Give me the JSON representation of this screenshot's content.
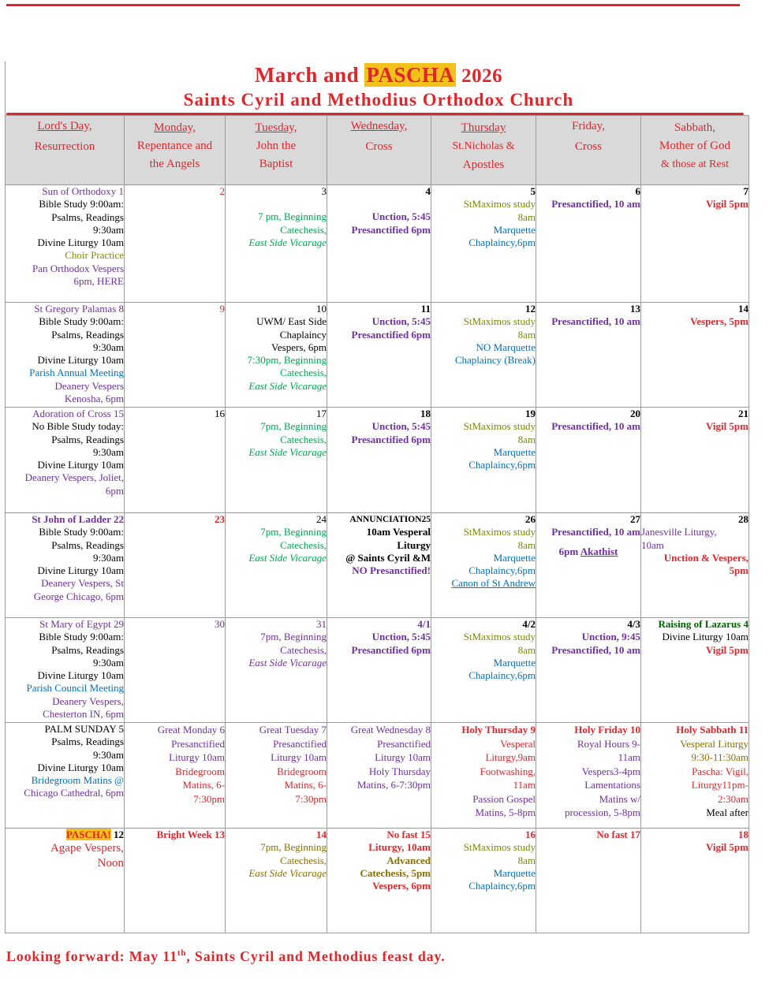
{
  "title": {
    "part1": "March and ",
    "highlight": "PASCHA",
    "year": " 2026"
  },
  "subtitle": "Saints Cyril and Methodius Orthodox Church",
  "headers": [
    {
      "line1": "Lord's Day,",
      "line2": "Resurrection"
    },
    {
      "line1": "Monday,",
      "line2": "Repentance and",
      "line3": "the Angels"
    },
    {
      "line1": "Tuesday,",
      "line2": "John the",
      "line3": "Baptist"
    },
    {
      "line1": "Wednesday,",
      "line2": "Cross"
    },
    {
      "line1": "Thursday",
      "line2": "St.Nicholas &",
      "line3": "Apostles"
    },
    {
      "line1": "Friday,",
      "line2": "Cross"
    },
    {
      "line1": "Sabbath,",
      "line2": "Mother of God",
      "line3": "& those at Rest"
    }
  ],
  "weeks": {
    "w1": {
      "sun": {
        "day": "Sun of Orthodoxy 1",
        "l1": "Bible Study 9:00am:",
        "l2": "Psalms, Readings",
        "l3": "9:30am",
        "l4": "Divine Liturgy 10am",
        "l5": "Choir Practice",
        "l6": "Pan Orthodox Vespers",
        "l7": "6pm, HERE"
      },
      "mon": {
        "day": "2"
      },
      "tue": {
        "day": "3",
        "l1": "7 pm, Beginning",
        "l2": "Catechesis,",
        "l3": "East Side Vicarage"
      },
      "wed": {
        "day": "4",
        "l1": "Unction, 5:45",
        "l2": "Presanctified 6pm"
      },
      "thu": {
        "day": "5",
        "l1": "StMaximos study",
        "l2": "8am",
        "l3": "Marquette",
        "l4": "Chaplaincy,6pm"
      },
      "fri": {
        "day": "6",
        "l1": "Presanctified, 10 am"
      },
      "sat": {
        "day": "7",
        "l1": "Vigil 5pm"
      }
    },
    "w2": {
      "sun": {
        "day": "St Gregory Palamas 8",
        "l1": "Bible Study 9:00am:",
        "l2": "Psalms, Readings",
        "l3": "9:30am",
        "l4": "Divine Liturgy 10am",
        "l5": "Parish Annual Meeting",
        "l6": "Deanery Vespers",
        "l7": "Kenosha, 6pm"
      },
      "mon": {
        "day": "9"
      },
      "tue": {
        "day": "10",
        "l1": "UWM/ East Side",
        "l2": "Chaplaincy",
        "l3": "Vespers, 6pm",
        "l4": "7:30pm, Beginning",
        "l5": "Catechesis,",
        "l6": "East Side Vicarage"
      },
      "wed": {
        "day": "11",
        "l1": "Unction, 5:45",
        "l2": "Presanctified 6pm"
      },
      "thu": {
        "day": "12",
        "l1": "StMaximos study",
        "l2": "8am",
        "l3": "NO Marquette",
        "l4": "Chaplaincy (Break)"
      },
      "fri": {
        "day": "13",
        "l1": "Presanctified, 10 am"
      },
      "sat": {
        "day": "14",
        "l1": "Vespers, 5pm"
      }
    },
    "w3": {
      "sun": {
        "day": "Adoration of Cross 15",
        "l1": "No Bible Study today:",
        "l2": "Psalms, Readings",
        "l3": "9:30am",
        "l4": "Divine Liturgy 10am",
        "l5": "Deanery Vespers, Joliet,",
        "l6": "6pm"
      },
      "mon": {
        "day": "16"
      },
      "tue": {
        "day": "17",
        "l1": "7pm, Beginning",
        "l2": "Catechesis,",
        "l3": "East Side Vicarage"
      },
      "wed": {
        "day": "18",
        "l1": "Unction, 5:45",
        "l2": "Presanctified 6pm"
      },
      "thu": {
        "day": "19",
        "l1": "StMaximos study",
        "l2": "8am",
        "l3": "Marquette",
        "l4": "Chaplaincy,6pm"
      },
      "fri": {
        "day": "20",
        "l1": "Presanctified, 10 am"
      },
      "sat": {
        "day": "21",
        "l1": "Vigil 5pm"
      }
    },
    "w4": {
      "sun": {
        "day": "St John of Ladder 22",
        "l1": "Bible Study 9:00am:",
        "l2": "Psalms, Readings",
        "l3": "9:30am",
        "l4": "Divine Liturgy 10am",
        "l5": "Deanery Vespers, St",
        "l6": "George Chicago, 6pm"
      },
      "mon": {
        "day": "23"
      },
      "tue": {
        "day": "24",
        "l1": "7pm, Beginning",
        "l2": "Catechesis,",
        "l3": "East Side Vicarage"
      },
      "wed": {
        "day": "ANNUNCIATION25",
        "l1": "10am Vesperal",
        "l2": "Liturgy",
        "l3": "@ Saints Cyril &M",
        "l4": "NO Presanctified!"
      },
      "thu": {
        "day": "26",
        "l1": "StMaximos study",
        "l2": "8am",
        "l3": "Marquette",
        "l4": "Chaplaincy,6pm",
        "l5": "Canon of St Andrew"
      },
      "fri": {
        "day": "27",
        "l1": "Presanctified, 10 am",
        "l2": "6pm ",
        "l3": "Akathist"
      },
      "sat": {
        "day": "28",
        "l1": "Janesville Liturgy,",
        "l2": "10am",
        "l3": "Unction & Vespers,",
        "l4": "5pm"
      }
    },
    "w5": {
      "sun": {
        "day": "St Mary of Egypt 29",
        "l1": "Bible Study 9:00am:",
        "l2": "Psalms, Readings",
        "l3": "9:30am",
        "l4": "Divine Liturgy 10am",
        "l5": "Parish Council Meeting",
        "l6": "Deanery Vespers,",
        "l7": "Chesterton IN, 6pm"
      },
      "mon": {
        "day": "30"
      },
      "tue": {
        "day": "31",
        "l1": "7pm, Beginning",
        "l2": "Catechesis,",
        "l3": "East Side Vicarage"
      },
      "wed": {
        "day": "4/1",
        "l1": "Unction, 5:45",
        "l2": "Presanctified 6pm"
      },
      "thu": {
        "day": "4/2",
        "l1": "StMaximos study",
        "l2": "8am",
        "l3": "Marquette",
        "l4": "Chaplaincy,6pm"
      },
      "fri": {
        "day": "4/3",
        "l1": "Unction, 9:45",
        "l2": "Presanctified, 10 am"
      },
      "sat": {
        "day": "Raising of Lazarus 4",
        "l1": "Divine Liturgy 10am",
        "l2": "Vigil 5pm"
      }
    },
    "w6": {
      "sun": {
        "day": "PALM SUNDAY 5",
        "l1": "Psalms, Readings",
        "l2": "9:30am",
        "l3": "Divine Liturgy 10am",
        "l4": "Bridegroom Matins @",
        "l5": "Chicago Cathedral, 6pm"
      },
      "mon": {
        "day": "Great Monday 6",
        "l1": "Presanctified",
        "l2": "Liturgy 10am",
        "l3": "Bridegroom",
        "l4": "Matins, 6-",
        "l5": "7:30pm"
      },
      "tue": {
        "day": "Great Tuesday 7",
        "l1": "Presanctified",
        "l2": "Liturgy 10am",
        "l3": "Bridegroom",
        "l4": "Matins, 6-",
        "l5": "7:30pm"
      },
      "wed": {
        "day": "Great Wednesday 8",
        "l1": "Presanctified",
        "l2": "Liturgy 10am",
        "l3": "Holy Thursday",
        "l4": "Matins, 6-7:30pm"
      },
      "thu": {
        "day": "Holy Thursday 9",
        "l1": "Vesperal",
        "l2": "Liturgy,9am",
        "l3": "Footwashing,",
        "l4": "11am",
        "l5": "Passion Gospel",
        "l6": "Matins, 5-8pm"
      },
      "fri": {
        "day": "Holy Friday 10",
        "l1": "Royal Hours 9-",
        "l2": "11am",
        "l3": "Vespers3-4pm",
        "l4": "Lamentations",
        "l5": "Matins w/",
        "l6": "procession, 5-8pm"
      },
      "sat": {
        "day": "Holy Sabbath 11",
        "l1": "Vesperal Liturgy",
        "l2": "9:30-11:30am",
        "l3": "Pascha: Vigil,",
        "l4": "Liturgy11pm-",
        "l5": "2:30am",
        "l6": "Meal after"
      }
    },
    "w7": {
      "sun": {
        "pascha": "PASCHA!",
        "day": " 12",
        "l1": "Agape Vespers,",
        "l2": "Noon"
      },
      "mon": {
        "day": "Bright Week 13"
      },
      "tue": {
        "day": "14",
        "l1": "7pm, Beginning",
        "l2": "Catechesis,",
        "l3": "East Side Vicarage"
      },
      "wed": {
        "day": "No fast 15",
        "l1": "Liturgy, 10am",
        "l2": "Advanced",
        "l3": "Catechesis, 5pm",
        "l4": "Vespers, 6pm"
      },
      "thu": {
        "day": "16",
        "l1": "StMaximos study",
        "l2": "8am",
        "l3": "Marquette",
        "l4": "Chaplaincy,6pm"
      },
      "fri": {
        "day": "No fast 17"
      },
      "sat": {
        "day": "18",
        "l1": "Vigil 5pm"
      }
    }
  },
  "footer": {
    "pre": "Looking forward: May 11",
    "sup": "th",
    "post": ", Saints Cyril and Methodius feast day."
  },
  "colors": {
    "red": "#e0262b",
    "purple": "#7030a0",
    "green": "#00a651",
    "olive": "#7a8a00",
    "blue": "#0070c0",
    "header_bg": "#d9d9d9",
    "highlight": "#f2c21a"
  }
}
